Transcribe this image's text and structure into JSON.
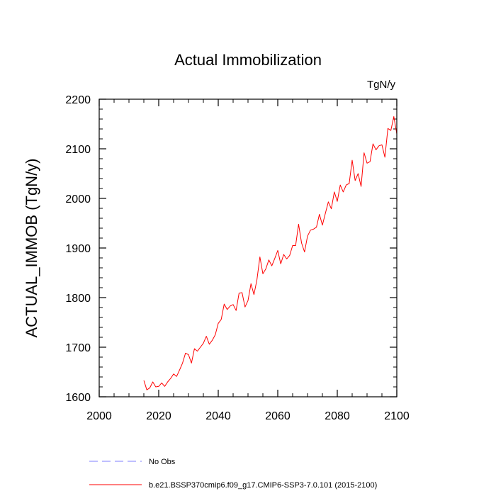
{
  "chart_data": {
    "type": "line",
    "title": "Actual Immobilization",
    "units_label": "TgN/y",
    "xlabel": "",
    "ylabel": "ACTUAL_IMMOB  (TgN/y)",
    "xlim": [
      2000,
      2100
    ],
    "ylim": [
      1600,
      2200
    ],
    "x_ticks": [
      2000,
      2020,
      2040,
      2060,
      2080,
      2100
    ],
    "y_ticks": [
      1600,
      1700,
      1800,
      1900,
      2000,
      2100,
      2200
    ],
    "x_minor_step": 5,
    "y_minor_step": 20,
    "grid": false,
    "legend_position": "bottom-left",
    "series": [
      {
        "name": "No Obs",
        "color": "#7f7fff",
        "dash": "dashed",
        "x": [],
        "values": []
      },
      {
        "name": "b.e21.BSSP370cmip6.f09_g17.CMIP6-SSP3-7.0.101 (2015-2100)",
        "color": "#ff0000",
        "dash": "solid",
        "x": [
          2015,
          2016,
          2017,
          2018,
          2019,
          2020,
          2021,
          2022,
          2023,
          2024,
          2025,
          2026,
          2027,
          2028,
          2029,
          2030,
          2031,
          2032,
          2033,
          2034,
          2035,
          2036,
          2037,
          2038,
          2039,
          2040,
          2041,
          2042,
          2043,
          2044,
          2045,
          2046,
          2047,
          2048,
          2049,
          2050,
          2051,
          2052,
          2053,
          2054,
          2055,
          2056,
          2057,
          2058,
          2059,
          2060,
          2061,
          2062,
          2063,
          2064,
          2065,
          2066,
          2067,
          2068,
          2069,
          2070,
          2071,
          2072,
          2073,
          2074,
          2075,
          2076,
          2077,
          2078,
          2079,
          2080,
          2081,
          2082,
          2083,
          2084,
          2085,
          2086,
          2087,
          2088,
          2089,
          2090,
          2091,
          2092,
          2093,
          2094,
          2095,
          2096,
          2097,
          2098,
          2099,
          2100
        ],
        "values": [
          1633,
          1614,
          1618,
          1630,
          1620,
          1621,
          1628,
          1621,
          1630,
          1637,
          1646,
          1641,
          1654,
          1668,
          1688,
          1685,
          1668,
          1697,
          1692,
          1700,
          1708,
          1722,
          1706,
          1714,
          1725,
          1748,
          1756,
          1787,
          1776,
          1783,
          1786,
          1774,
          1809,
          1810,
          1781,
          1794,
          1828,
          1806,
          1836,
          1882,
          1848,
          1858,
          1876,
          1864,
          1879,
          1895,
          1868,
          1887,
          1878,
          1885,
          1905,
          1905,
          1948,
          1910,
          1892,
          1924,
          1936,
          1938,
          1942,
          1968,
          1946,
          1970,
          1993,
          1979,
          2013,
          1994,
          2027,
          2013,
          2027,
          2030,
          2077,
          2036,
          2050,
          2024,
          2092,
          2071,
          2074,
          2110,
          2098,
          2106,
          2108,
          2083,
          2141,
          2137,
          2165,
          2130
        ]
      }
    ]
  }
}
